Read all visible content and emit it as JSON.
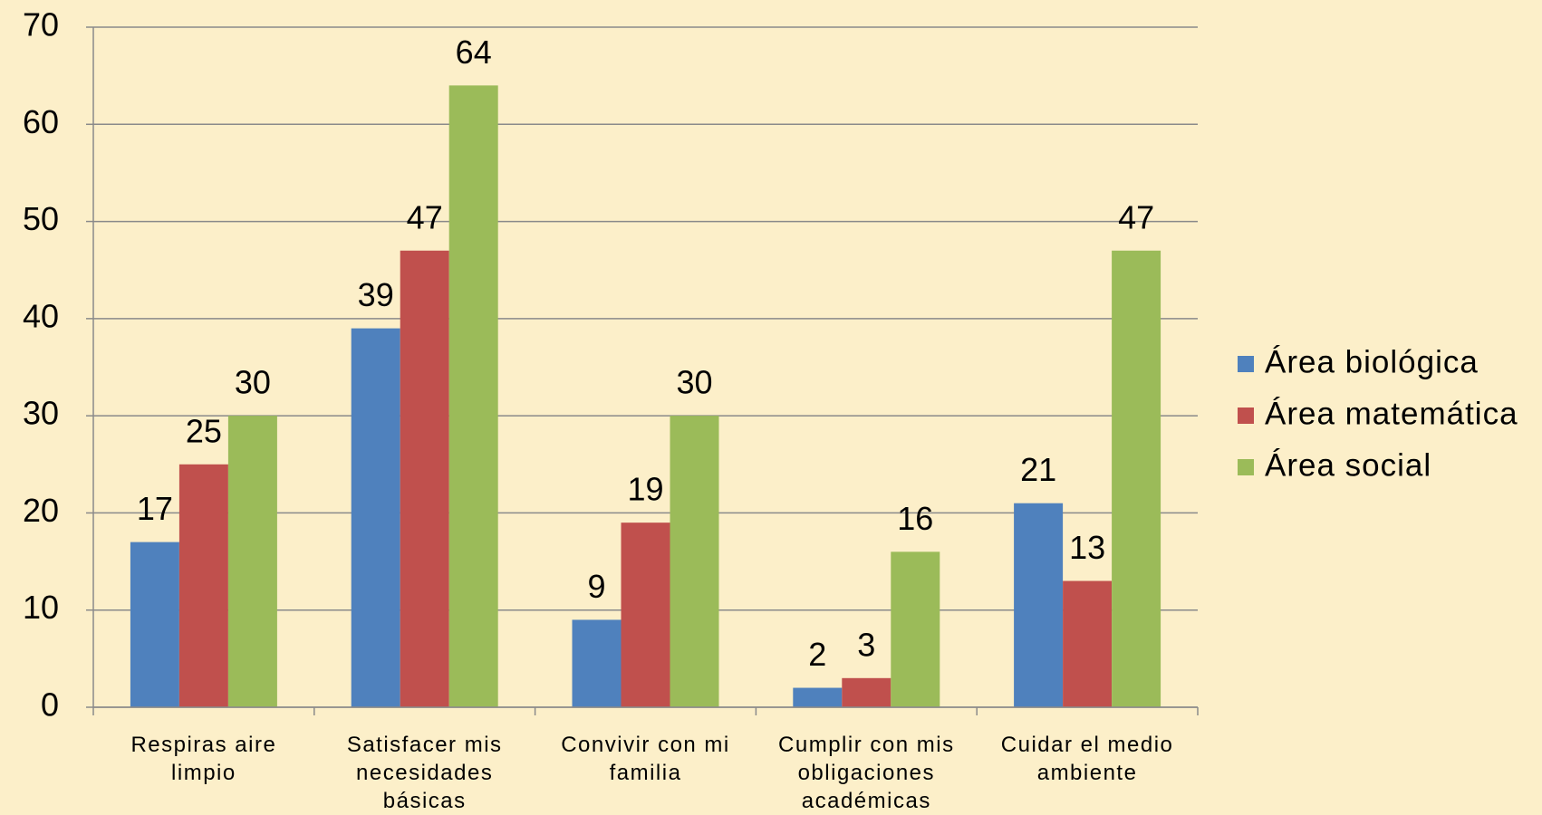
{
  "chart_data": {
    "type": "bar",
    "categories": [
      "Respiras aire limpio",
      "Satisfacer mis necesidades básicas",
      "Convivir con mi familia",
      "Cumplir con mis obligaciones académicas",
      "Cuidar el medio ambiente"
    ],
    "series": [
      {
        "name": "Área biológica",
        "color": "#4f81bd",
        "values": [
          17,
          39,
          9,
          2,
          21
        ]
      },
      {
        "name": "Área matemática",
        "color": "#c0504d",
        "values": [
          25,
          47,
          19,
          3,
          13
        ]
      },
      {
        "name": "Área social",
        "color": "#9bbb59",
        "values": [
          30,
          64,
          30,
          16,
          47
        ]
      }
    ],
    "ylim": [
      0,
      70
    ],
    "yticks": [
      0,
      10,
      20,
      30,
      40,
      50,
      60,
      70
    ],
    "grid": true,
    "legend": "right"
  }
}
